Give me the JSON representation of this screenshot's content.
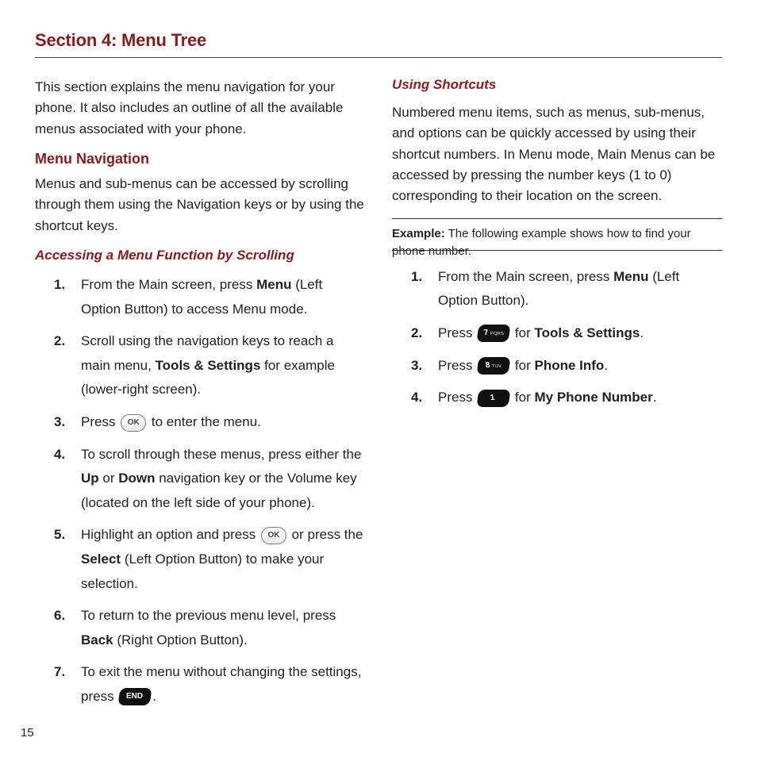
{
  "section_title": "Section 4: Menu Tree",
  "page_number": "15",
  "left": {
    "intro": "This section explains the menu navigation for your phone. It also includes an outline of all the available menus associated with your phone.",
    "h2": "Menu Navigation",
    "nav_intro": "Menus and sub-menus can be accessed by scrolling through them using the Navigation keys or by using the shortcut keys.",
    "h3": "Accessing a Menu Function by Scrolling",
    "steps": {
      "s1_a": "From the Main screen, press ",
      "s1_bold": "Menu",
      "s1_b": " (Left Option Button) to access Menu mode.",
      "s2_a": "Scroll using the navigation keys to reach a main menu, ",
      "s2_bold": "Tools & Settings",
      "s2_b": " for example (lower-right screen).",
      "s3_a": "Press ",
      "s3_b": " to enter the menu.",
      "s4_a": "To scroll through these menus, press either the ",
      "s4_bold1": "Up",
      "s4_mid": " or ",
      "s4_bold2": "Down",
      "s4_b": " navigation key or the Volume key (located on the left side of your phone).",
      "s5_a": "Highlight an option and press ",
      "s5_mid": " or press the ",
      "s5_bold": "Select",
      "s5_b": " (Left Option Button) to make your selection.",
      "s6_a": "To return to the previous menu level, press ",
      "s6_bold": "Back",
      "s6_b": " (Right Option Button).",
      "s7_a": "To exit the menu without changing the settings, press ",
      "s7_b": "."
    }
  },
  "right": {
    "h3": "Using Shortcuts",
    "intro": "Numbered menu items, such as menus, sub-menus, and options can be quickly accessed by using their shortcut numbers. In Menu mode, Main Menus can be accessed by pressing the number keys (1 to 0) corresponding to their location on the screen.",
    "example_label": "Example:",
    "example_body": "The following example shows how to find your phone number.",
    "steps": {
      "s1_a": "From the Main screen, press ",
      "s1_bold": "Menu",
      "s1_b": " (Left Option Button).",
      "s2_a": "Press ",
      "s2_mid": " for ",
      "s2_bold": "Tools & Settings",
      "s2_b": ".",
      "s3_a": "Press ",
      "s3_mid": " for ",
      "s3_bold": "Phone Info",
      "s3_b": ".",
      "s4_a": "Press ",
      "s4_mid": " for ",
      "s4_bold": "My Phone Number",
      "s4_b": "."
    },
    "keys": {
      "k7": "7",
      "k7sub": "PQRS",
      "k8": "8",
      "k8sub": "TUV",
      "k1": "1",
      "k1sub": "",
      "end": "END"
    }
  },
  "icons": {
    "ok_label": "OK"
  },
  "style": {
    "brand_red": "#8b1a1a",
    "text_color": "#222222",
    "background": "#ffffff"
  }
}
